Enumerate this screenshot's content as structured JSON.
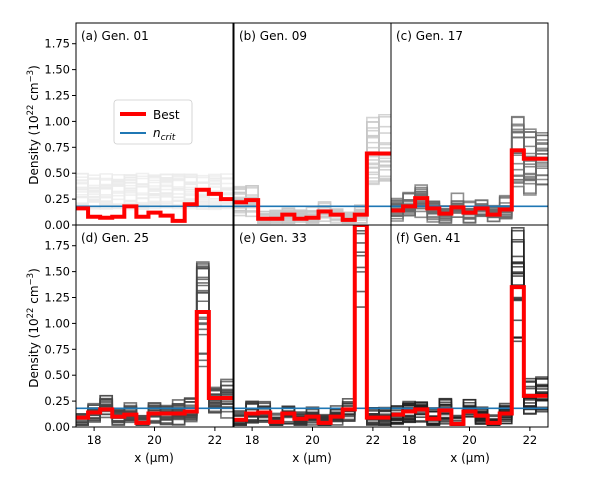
{
  "chart_data": {
    "type": "line",
    "layout": "2x3 grid of step-line panels",
    "shared_x": {
      "label": "x (μm)",
      "xlim": [
        17.4,
        22.6
      ],
      "ticks": [
        18,
        20,
        22
      ]
    },
    "shared_y": {
      "label_prefix": "Density (10",
      "label_exp": "22",
      "label_mid": " cm",
      "label_exp2": "−3",
      "label_suffix": ")",
      "ylim": [
        0,
        1.95
      ],
      "ticks": [
        "0.00",
        "0.25",
        "0.50",
        "0.75",
        "1.00",
        "1.25",
        "1.50",
        "1.75"
      ],
      "tick_values": [
        0,
        0.25,
        0.5,
        0.75,
        1.0,
        1.25,
        1.5,
        1.75
      ]
    },
    "n_crit_value": 0.18,
    "legend": {
      "best_label": "Best",
      "ncrit_main": "n",
      "ncrit_sub": "crit",
      "best_color": "#ff0000",
      "ncrit_color": "#1f77b4"
    },
    "bin_edges": [
      17.4,
      17.8,
      18.2,
      18.6,
      19.0,
      19.4,
      19.8,
      20.2,
      20.6,
      21.0,
      21.4,
      21.8,
      22.2,
      22.6
    ],
    "panels": [
      {
        "title": "(a) Gen. 01",
        "cloud_color": "#ebebeb",
        "best": [
          0.16,
          0.08,
          0.07,
          0.08,
          0.18,
          0.08,
          0.12,
          0.09,
          0.04,
          0.2,
          0.34,
          0.3,
          0.25
        ]
      },
      {
        "title": "(b) Gen. 09",
        "cloud_color": "#c6c6c6",
        "best": [
          0.22,
          0.24,
          0.06,
          0.06,
          0.1,
          0.06,
          0.07,
          0.13,
          0.1,
          0.05,
          0.1,
          0.69,
          0.69
        ]
      },
      {
        "title": "(c) Gen. 17",
        "cloud_color": "#686868",
        "best": [
          0.14,
          0.18,
          0.26,
          0.16,
          0.11,
          0.17,
          0.12,
          0.16,
          0.1,
          0.15,
          0.72,
          0.64,
          0.64
        ]
      },
      {
        "title": "(d) Gen. 25",
        "cloud_color": "#444444",
        "best": [
          0.09,
          0.14,
          0.17,
          0.1,
          0.12,
          0.04,
          0.13,
          0.13,
          0.13,
          0.15,
          1.11,
          0.28,
          0.28
        ]
      },
      {
        "title": "(e) Gen. 33",
        "cloud_color": "#333333",
        "best": [
          0.07,
          0.13,
          0.14,
          0.05,
          0.13,
          0.08,
          0.1,
          0.04,
          0.1,
          0.17,
          1.95,
          0.09,
          0.09
        ]
      },
      {
        "title": "(f) Gen. 41",
        "cloud_color": "#222222",
        "best": [
          0.12,
          0.15,
          0.17,
          0.08,
          0.16,
          0.03,
          0.15,
          0.11,
          0.04,
          0.13,
          1.35,
          0.3,
          0.3
        ]
      }
    ]
  }
}
